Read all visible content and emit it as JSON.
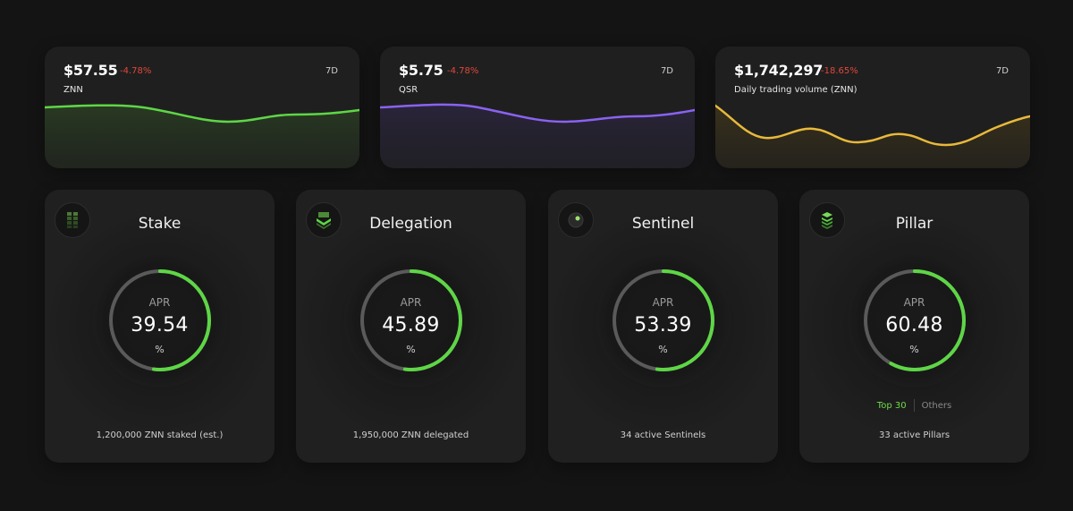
{
  "price_cards": [
    {
      "value": "$57.55",
      "change": "-4.78%",
      "period": "7D",
      "label": "ZNN",
      "color": "#5ed646"
    },
    {
      "value": "$5.75",
      "change": "-4.78%",
      "period": "7D",
      "label": "QSR",
      "color": "#8a62f2"
    },
    {
      "value": "$1,742,297",
      "change": "-18.65%",
      "period": "7D",
      "label": "Daily trading volume (ZNN)",
      "color": "#e8b93a"
    }
  ],
  "stat_cards": [
    {
      "title": "Stake",
      "icon": "stake-stack-icon",
      "apr_label": "APR",
      "apr_value": "39.54",
      "apr_unit": "%",
      "apr_fraction": 0.52,
      "footer": "1,200,000 ZNN staked (est.)"
    },
    {
      "title": "Delegation",
      "icon": "delegation-layers-icon",
      "apr_label": "APR",
      "apr_value": "45.89",
      "apr_unit": "%",
      "apr_fraction": 0.52,
      "footer": "1,950,000 ZNN delegated"
    },
    {
      "title": "Sentinel",
      "icon": "sentinel-dot-icon",
      "apr_label": "APR",
      "apr_value": "53.39",
      "apr_unit": "%",
      "apr_fraction": 0.52,
      "footer": "34 active Sentinels"
    },
    {
      "title": "Pillar",
      "icon": "pillar-stack-icon",
      "apr_label": "APR",
      "apr_value": "60.48",
      "apr_unit": "%",
      "apr_fraction": 0.58,
      "footer": "33 active Pillars",
      "toggle": {
        "active": "Top 30",
        "other": "Others"
      }
    }
  ],
  "colors": {
    "accent_green": "#5ed646",
    "negative": "#e0473c",
    "background": "#141414",
    "card": "#202020"
  }
}
